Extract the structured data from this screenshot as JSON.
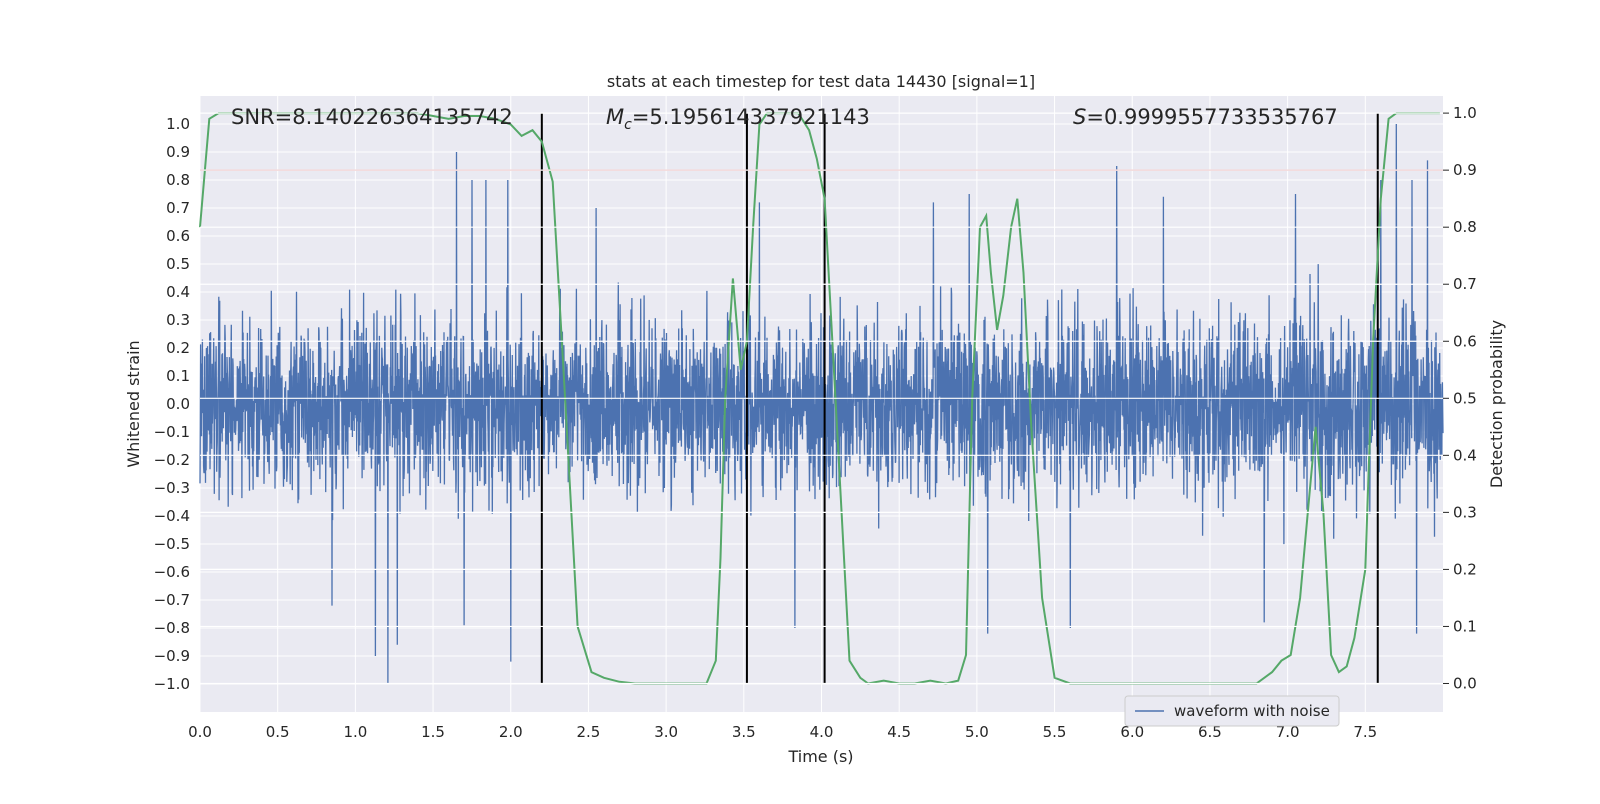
{
  "chart_data": {
    "type": "line",
    "title": "stats at each timestep for test data 14430 [signal=1]",
    "xlabel": "Time (s)",
    "ylabel": "Whitened strain",
    "y2label": "Detection probability",
    "xlim": [
      0.0,
      8.0
    ],
    "ylim": [
      -1.1,
      1.1
    ],
    "y2lim": [
      -0.05,
      1.03
    ],
    "xticks": [
      0.0,
      0.5,
      1.0,
      1.5,
      2.0,
      2.5,
      3.0,
      3.5,
      4.0,
      4.5,
      5.0,
      5.5,
      6.0,
      6.5,
      7.0,
      7.5
    ],
    "xtick_labels": [
      "0.0",
      "0.5",
      "1.0",
      "1.5",
      "2.0",
      "2.5",
      "3.0",
      "3.5",
      "4.0",
      "4.5",
      "5.0",
      "5.5",
      "6.0",
      "6.5",
      "7.0",
      "7.5"
    ],
    "yticks": [
      1.0,
      0.9,
      0.8,
      0.7,
      0.6,
      0.5,
      0.4,
      0.3,
      0.2,
      0.1,
      0.0,
      -0.1,
      -0.2,
      -0.3,
      -0.4,
      -0.5,
      -0.6,
      -0.7,
      -0.8,
      -0.9,
      -1.0
    ],
    "ytick_labels": [
      "1.0",
      "0.9",
      "0.8",
      "0.7",
      "0.6",
      "0.5",
      "0.4",
      "0.3",
      "0.2",
      "0.1",
      "0.0",
      "−0.1",
      "−0.2",
      "−0.3",
      "−0.4",
      "−0.5",
      "−0.6",
      "−0.7",
      "−0.8",
      "−0.9",
      "−1.0"
    ],
    "y2ticks": [
      1.0,
      0.9,
      0.8,
      0.7,
      0.6,
      0.5,
      0.4,
      0.3,
      0.2,
      0.1,
      0.0
    ],
    "y2tick_labels": [
      "1.0",
      "0.9",
      "0.8",
      "0.7",
      "0.6",
      "0.5",
      "0.4",
      "0.3",
      "0.2",
      "0.1",
      "0.0"
    ],
    "annotations": {
      "snr": "SNR=8.140226364135742",
      "mc_symbol": "M",
      "mc_sub": "c",
      "mc_value": "=5.195614337921143",
      "s_symbol": "S",
      "s_value": "=0.9999557733535767"
    },
    "threshold": {
      "axis": "y2",
      "value": 0.9,
      "color": "#c44e52"
    },
    "vlines": {
      "x": [
        2.2,
        3.52,
        4.02,
        7.58
      ],
      "y2_range": [
        0.0,
        1.0
      ],
      "color": "#000000"
    },
    "legend": {
      "label": "waveform with noise",
      "location": "lower-right"
    },
    "series": [
      {
        "name": "waveform with noise",
        "axis": "y",
        "color": "#4c72b0",
        "kind": "noise",
        "x_range": [
          0.0,
          8.0
        ],
        "n_points": 4096,
        "envelope": 0.45,
        "spikes": [
          {
            "x": 1.21,
            "y": -1.0
          },
          {
            "x": 1.65,
            "y": 0.9
          },
          {
            "x": 1.13,
            "y": -0.9
          },
          {
            "x": 1.27,
            "y": -0.86
          },
          {
            "x": 2.0,
            "y": -0.92
          },
          {
            "x": 1.75,
            "y": 0.8
          },
          {
            "x": 1.84,
            "y": 0.8
          },
          {
            "x": 1.98,
            "y": 0.8
          },
          {
            "x": 1.7,
            "y": -0.79
          },
          {
            "x": 2.55,
            "y": 0.7
          },
          {
            "x": 3.6,
            "y": 0.72
          },
          {
            "x": 4.95,
            "y": 0.75
          },
          {
            "x": 5.07,
            "y": -0.82
          },
          {
            "x": 5.6,
            "y": -0.8
          },
          {
            "x": 5.9,
            "y": 0.85
          },
          {
            "x": 6.2,
            "y": 0.74
          },
          {
            "x": 7.05,
            "y": 0.75
          },
          {
            "x": 7.6,
            "y": 0.8
          },
          {
            "x": 7.7,
            "y": 1.0
          },
          {
            "x": 7.83,
            "y": -0.82
          },
          {
            "x": 7.9,
            "y": 0.87
          },
          {
            "x": 7.8,
            "y": 0.8
          },
          {
            "x": 3.83,
            "y": -0.8
          },
          {
            "x": 6.85,
            "y": -0.78
          },
          {
            "x": 0.85,
            "y": -0.72
          },
          {
            "x": 4.72,
            "y": 0.72
          }
        ]
      },
      {
        "name": "detection probability",
        "axis": "y2",
        "color": "#55a868",
        "x": [
          0.0,
          0.06,
          0.12,
          0.2,
          0.4,
          0.6,
          0.8,
          1.0,
          1.2,
          1.4,
          1.6,
          1.7,
          1.8,
          1.9,
          2.0,
          2.07,
          2.14,
          2.2,
          2.27,
          2.35,
          2.43,
          2.52,
          2.6,
          2.7,
          2.8,
          3.0,
          3.2,
          3.26,
          3.32,
          3.35,
          3.38,
          3.43,
          3.48,
          3.52,
          3.56,
          3.6,
          3.65,
          3.75,
          3.85,
          3.92,
          3.97,
          4.02,
          4.1,
          4.18,
          4.25,
          4.3,
          4.4,
          4.5,
          4.6,
          4.7,
          4.8,
          4.88,
          4.93,
          4.97,
          5.02,
          5.06,
          5.09,
          5.13,
          5.17,
          5.22,
          5.26,
          5.3,
          5.35,
          5.42,
          5.5,
          5.6,
          5.8,
          6.0,
          6.2,
          6.4,
          6.6,
          6.8,
          6.9,
          6.96,
          7.02,
          7.08,
          7.13,
          7.18,
          7.23,
          7.28,
          7.33,
          7.38,
          7.43,
          7.5,
          7.55,
          7.6,
          7.65,
          7.7,
          7.8,
          7.9,
          7.98
        ],
        "values": [
          0.8,
          0.99,
          1.0,
          1.0,
          1.0,
          1.0,
          1.0,
          1.0,
          1.0,
          1.0,
          0.99,
          0.995,
          0.995,
          0.99,
          0.98,
          0.96,
          0.97,
          0.95,
          0.88,
          0.5,
          0.1,
          0.02,
          0.01,
          0.003,
          0.0,
          0.0,
          0.0,
          0.0,
          0.04,
          0.22,
          0.5,
          0.71,
          0.55,
          0.6,
          0.8,
          0.98,
          1.0,
          1.0,
          1.0,
          0.97,
          0.92,
          0.85,
          0.45,
          0.04,
          0.01,
          0.0,
          0.005,
          0.0,
          0.0,
          0.005,
          0.0,
          0.005,
          0.05,
          0.5,
          0.8,
          0.82,
          0.72,
          0.62,
          0.68,
          0.8,
          0.85,
          0.72,
          0.45,
          0.15,
          0.01,
          0.0,
          0.0,
          0.0,
          0.0,
          0.0,
          0.0,
          0.0,
          0.02,
          0.04,
          0.05,
          0.15,
          0.3,
          0.45,
          0.3,
          0.05,
          0.02,
          0.03,
          0.08,
          0.2,
          0.6,
          0.85,
          0.99,
          1.0,
          1.0,
          1.0,
          1.0
        ]
      }
    ]
  }
}
